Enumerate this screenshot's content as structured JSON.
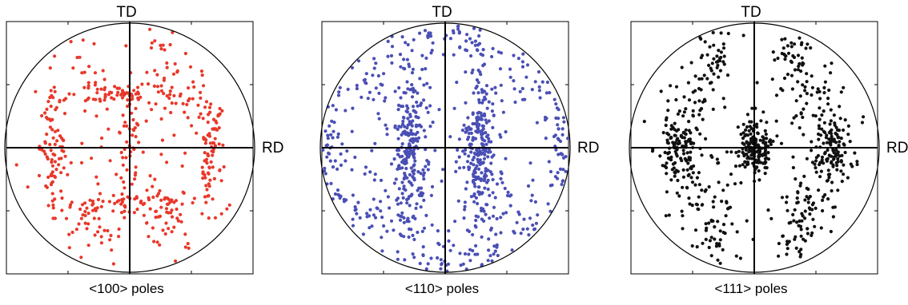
{
  "chart_data": [
    {
      "type": "scatter",
      "title": "",
      "caption": "<100> poles",
      "axis_labels": {
        "top": "TD",
        "right": "RD"
      },
      "x_range": [
        -1,
        1
      ],
      "y_range": [
        -1,
        1
      ],
      "grid": false,
      "marker_color": "#e8382a",
      "clusters": [
        {
          "x": 0.0,
          "y": 0.42,
          "sx": 0.3,
          "sy": 0.05,
          "n": 70
        },
        {
          "x": 0.0,
          "y": -0.45,
          "sx": 0.3,
          "sy": 0.05,
          "n": 70
        },
        {
          "x": -0.62,
          "y": 0.0,
          "sx": 0.05,
          "sy": 0.18,
          "n": 45
        },
        {
          "x": 0.66,
          "y": 0.0,
          "sx": 0.05,
          "sy": 0.18,
          "n": 45
        },
        {
          "x": -0.6,
          "y": 0.0,
          "sx": 0.05,
          "sy": 0.35,
          "n": 35
        },
        {
          "x": 0.64,
          "y": 0.0,
          "sx": 0.05,
          "sy": 0.35,
          "n": 35
        },
        {
          "x": -0.3,
          "y": 0.62,
          "sx": 0.1,
          "sy": 0.15,
          "n": 30
        },
        {
          "x": 0.3,
          "y": 0.62,
          "sx": 0.1,
          "sy": 0.15,
          "n": 30
        },
        {
          "x": -0.3,
          "y": -0.62,
          "sx": 0.1,
          "sy": 0.15,
          "n": 30
        },
        {
          "x": 0.3,
          "y": -0.62,
          "sx": 0.1,
          "sy": 0.15,
          "n": 30
        },
        {
          "x": 0.0,
          "y": 0.0,
          "sx": 0.04,
          "sy": 0.25,
          "n": 30
        },
        {
          "x": 0.0,
          "y": 0.0,
          "sx": 0.55,
          "sy": 0.55,
          "n": 90
        }
      ]
    },
    {
      "type": "scatter",
      "title": "",
      "caption": "<110> poles",
      "axis_labels": {
        "top": "TD",
        "right": "RD"
      },
      "x_range": [
        -1,
        1
      ],
      "y_range": [
        -1,
        1
      ],
      "grid": false,
      "marker_color": "#4a4fb5",
      "clusters": [
        {
          "x": -0.28,
          "y": 0.0,
          "sx": 0.06,
          "sy": 0.32,
          "n": 190
        },
        {
          "x": 0.28,
          "y": 0.0,
          "sx": 0.06,
          "sy": 0.32,
          "n": 190
        },
        {
          "x": -0.3,
          "y": 0.0,
          "sx": 0.12,
          "sy": 0.75,
          "n": 120
        },
        {
          "x": 0.3,
          "y": 0.0,
          "sx": 0.12,
          "sy": 0.75,
          "n": 120
        },
        {
          "x": -0.92,
          "y": 0.0,
          "sx": 0.06,
          "sy": 0.4,
          "n": 80
        },
        {
          "x": 0.92,
          "y": 0.0,
          "sx": 0.06,
          "sy": 0.4,
          "n": 80
        },
        {
          "x": 0.0,
          "y": 0.9,
          "sx": 0.25,
          "sy": 0.08,
          "n": 45
        },
        {
          "x": 0.0,
          "y": -0.9,
          "sx": 0.25,
          "sy": 0.08,
          "n": 45
        },
        {
          "x": -0.65,
          "y": 0.55,
          "sx": 0.15,
          "sy": 0.15,
          "n": 35
        },
        {
          "x": 0.65,
          "y": 0.55,
          "sx": 0.15,
          "sy": 0.15,
          "n": 35
        },
        {
          "x": -0.65,
          "y": -0.55,
          "sx": 0.15,
          "sy": 0.15,
          "n": 35
        },
        {
          "x": 0.65,
          "y": -0.55,
          "sx": 0.15,
          "sy": 0.15,
          "n": 35
        },
        {
          "x": 0.0,
          "y": 0.0,
          "sx": 0.6,
          "sy": 0.6,
          "n": 70
        }
      ]
    },
    {
      "type": "scatter",
      "title": "",
      "caption": "<111> poles",
      "axis_labels": {
        "top": "TD",
        "right": "RD"
      },
      "x_range": [
        -1,
        1
      ],
      "y_range": [
        -1,
        1
      ],
      "grid": false,
      "marker_color": "#111111",
      "clusters": [
        {
          "x": 0.0,
          "y": 0.0,
          "sx": 0.07,
          "sy": 0.12,
          "n": 170
        },
        {
          "x": -0.6,
          "y": 0.0,
          "sx": 0.07,
          "sy": 0.12,
          "n": 95
        },
        {
          "x": 0.62,
          "y": 0.0,
          "sx": 0.07,
          "sy": 0.12,
          "n": 95
        },
        {
          "x": -0.58,
          "y": 0.0,
          "sx": 0.1,
          "sy": 0.32,
          "n": 55
        },
        {
          "x": 0.6,
          "y": 0.0,
          "sx": 0.1,
          "sy": 0.32,
          "n": 55
        },
        {
          "x": -0.3,
          "y": 0.75,
          "sx": 0.08,
          "sy": 0.12,
          "n": 40
        },
        {
          "x": 0.32,
          "y": 0.75,
          "sx": 0.08,
          "sy": 0.12,
          "n": 40
        },
        {
          "x": -0.3,
          "y": -0.72,
          "sx": 0.08,
          "sy": 0.12,
          "n": 40
        },
        {
          "x": 0.32,
          "y": -0.72,
          "sx": 0.08,
          "sy": 0.12,
          "n": 40
        },
        {
          "x": -0.4,
          "y": 0.42,
          "sx": 0.1,
          "sy": 0.14,
          "n": 30
        },
        {
          "x": 0.42,
          "y": 0.42,
          "sx": 0.1,
          "sy": 0.14,
          "n": 30
        },
        {
          "x": -0.4,
          "y": -0.42,
          "sx": 0.1,
          "sy": 0.14,
          "n": 30
        },
        {
          "x": 0.42,
          "y": -0.42,
          "sx": 0.1,
          "sy": 0.14,
          "n": 30
        },
        {
          "x": 0.0,
          "y": 0.0,
          "sx": 0.6,
          "sy": 0.6,
          "n": 45
        }
      ]
    }
  ]
}
